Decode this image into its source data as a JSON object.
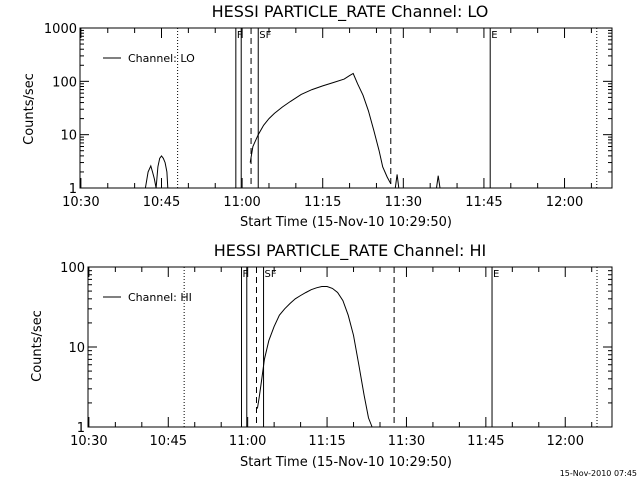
{
  "footer": "15-Nov-2010 07:45",
  "chart_data": [
    {
      "type": "line",
      "title": "HESSI PARTICLE_RATE Channel: LO",
      "xlabel": "Start Time (15-Nov-10 10:29:50)",
      "ylabel": "Counts/sec",
      "y_scale": "log",
      "ylim": [
        1,
        1000
      ],
      "xlim": [
        "10:29:50",
        "12:08:50"
      ],
      "x_ticks": [
        "10:30",
        "10:45",
        "11:00",
        "11:15",
        "11:30",
        "11:45",
        "12:00"
      ],
      "y_ticks": [
        "1",
        "10",
        "100",
        "1000"
      ],
      "legend": {
        "label": "Channel: LO",
        "position": "top-left"
      },
      "markers": [
        {
          "label": "F",
          "x": "10:58:50",
          "style": "solid"
        },
        {
          "label": "",
          "x": "10:59:50",
          "style": "solid"
        },
        {
          "label": "SF",
          "x": "11:03:00",
          "style": "solid"
        },
        {
          "label": "",
          "x": "11:01:40",
          "style": "dashed"
        },
        {
          "label": "",
          "x": "11:27:40",
          "style": "dashed"
        },
        {
          "label": "E",
          "x": "11:46:10",
          "style": "solid"
        },
        {
          "label": "",
          "x": "10:48:00",
          "style": "dotted"
        },
        {
          "label": "",
          "x": "12:06:00",
          "style": "dotted"
        }
      ],
      "series": [
        {
          "name": "Channel: LO",
          "segments": [
            {
              "x": [
                "10:42:00",
                "10:42:30",
                "10:43:00",
                "10:43:20",
                "10:43:40",
                "10:44:00",
                "10:44:20",
                "10:44:40",
                "10:45:00",
                "10:45:20",
                "10:45:40",
                "10:46:00",
                "10:46:10"
              ],
              "y": [
                1,
                2,
                2.6,
                2,
                1.5,
                1,
                2.5,
                3.6,
                4,
                3.6,
                3,
                2,
                1
              ]
            },
            {
              "x": [
                "11:01:30",
                "11:02:00",
                "11:03:00",
                "11:04:00",
                "11:05:00",
                "11:06:00",
                "11:07:30",
                "11:09:00",
                "11:11:00",
                "11:13:00",
                "11:15:00",
                "11:17:00",
                "11:19:00",
                "11:20:00",
                "11:20:40",
                "11:21:30",
                "11:22:30",
                "11:23:30",
                "11:24:30",
                "11:25:30",
                "11:26:10",
                "11:27:00",
                "11:27:40"
              ],
              "y": [
                3,
                6,
                10,
                15,
                20,
                25,
                33,
                42,
                57,
                70,
                82,
                95,
                110,
                128,
                140,
                90,
                55,
                28,
                12,
                5,
                2.5,
                1.6,
                1.2
              ]
            },
            {
              "x": [
                "11:28:30",
                "11:28:50",
                "11:29:10"
              ],
              "y": [
                1,
                1.8,
                1
              ]
            },
            {
              "x": [
                "11:36:10",
                "11:36:30",
                "11:36:50"
              ],
              "y": [
                1,
                1.7,
                1
              ]
            }
          ]
        }
      ]
    },
    {
      "type": "line",
      "title": "HESSI PARTICLE_RATE Channel: HI",
      "xlabel": "Start Time (15-Nov-10 10:29:50)",
      "ylabel": "Counts/sec",
      "y_scale": "log",
      "ylim": [
        1,
        100
      ],
      "xlim": [
        "10:29:50",
        "12:08:50"
      ],
      "x_ticks": [
        "10:30",
        "10:45",
        "11:00",
        "11:15",
        "11:30",
        "11:45",
        "12:00"
      ],
      "y_ticks": [
        "1",
        "10",
        "100"
      ],
      "legend": {
        "label": "Channel: HI",
        "position": "top-left"
      },
      "markers": [
        {
          "label": "F",
          "x": "10:58:50",
          "style": "solid"
        },
        {
          "label": "",
          "x": "10:59:50",
          "style": "solid"
        },
        {
          "label": "SF",
          "x": "11:03:00",
          "style": "solid"
        },
        {
          "label": "",
          "x": "11:01:40",
          "style": "dashed"
        },
        {
          "label": "",
          "x": "11:27:40",
          "style": "dashed"
        },
        {
          "label": "E",
          "x": "11:46:10",
          "style": "solid"
        },
        {
          "label": "",
          "x": "10:48:00",
          "style": "dotted"
        },
        {
          "label": "",
          "x": "12:06:00",
          "style": "dotted"
        }
      ],
      "series": [
        {
          "name": "Channel: HI",
          "segments": [
            {
              "x": [
                "11:01:50",
                "11:02:10",
                "11:02:40",
                "11:03:10",
                "11:04:00",
                "11:05:00",
                "11:06:00",
                "11:07:00",
                "11:08:00",
                "11:09:00",
                "11:10:00",
                "11:11:00",
                "11:12:00",
                "11:13:00",
                "11:14:00",
                "11:15:00",
                "11:16:00",
                "11:17:00",
                "11:18:00",
                "11:19:00",
                "11:20:00",
                "11:21:00",
                "11:22:00",
                "11:22:50",
                "11:23:30"
              ],
              "y": [
                1.7,
                2.3,
                4,
                7,
                12,
                18,
                25,
                30,
                35,
                40,
                44,
                48,
                52,
                55,
                57,
                57,
                54,
                48,
                38,
                25,
                14,
                6,
                2.5,
                1.3,
                1
              ]
            }
          ]
        }
      ]
    }
  ]
}
